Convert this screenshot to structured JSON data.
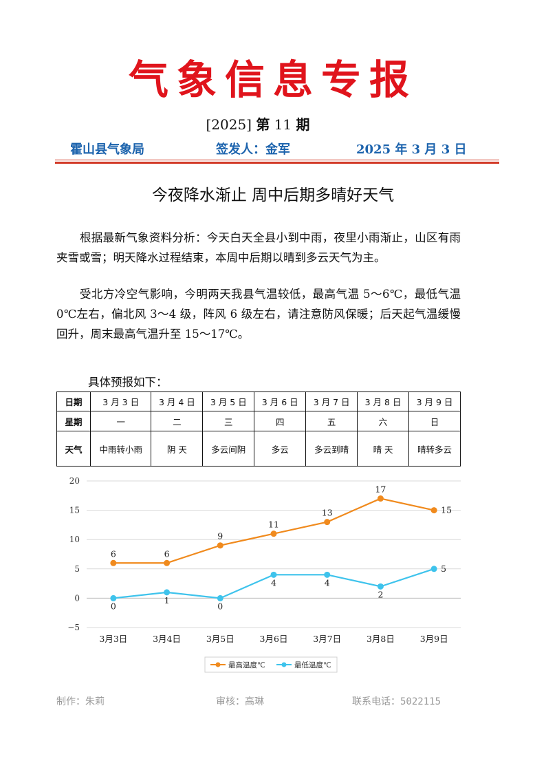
{
  "header": {
    "masthead": "气象信息专报",
    "issue_year": "[2025]",
    "issue_label": "第",
    "issue_number": "11",
    "issue_suffix": "期",
    "bureau": "霍山县气象局",
    "issuer": "签发人：金军",
    "date": "2025 年 3 月 3 日"
  },
  "headline": "今夜降水渐止 周中后期多晴好天气",
  "paragraphs": [
    "根据最新气象资料分析：今天白天全县小到中雨，夜里小雨渐止，山区有雨夹雪或雪；明天降水过程结束，本周中后期以晴到多云天气为主。",
    "受北方冷空气影响，今明两天我县气温较低，最高气温 5～6℃，最低气温 0℃左右，偏北风 3～4 级，阵风 6 级左右，请注意防风保暖；后天起气温缓慢回升，周末最高气温升至 15～17℃。"
  ],
  "forecast": {
    "intro": "具体预报如下：",
    "row_labels": {
      "date": "日期",
      "weekday": "星期",
      "weather": "天气"
    },
    "days": [
      {
        "date": "3 月 3 日",
        "weekday": "一",
        "weather": "中雨转小雨"
      },
      {
        "date": "3 月 4 日",
        "weekday": "二",
        "weather": "阴  天"
      },
      {
        "date": "3 月 5 日",
        "weekday": "三",
        "weather": "多云间阴"
      },
      {
        "date": "3 月 6 日",
        "weekday": "四",
        "weather": "多云"
      },
      {
        "date": "3 月 7 日",
        "weekday": "五",
        "weather": "多云到晴"
      },
      {
        "date": "3 月 8 日",
        "weekday": "六",
        "weather": "晴  天"
      },
      {
        "date": "3 月 9 日",
        "weekday": "日",
        "weather": "晴转多云"
      }
    ]
  },
  "chart_data": {
    "type": "line",
    "categories": [
      "3月3日",
      "3月4日",
      "3月5日",
      "3月6日",
      "3月7日",
      "3月8日",
      "3月9日"
    ],
    "series": [
      {
        "name": "最高温度℃",
        "values": [
          6,
          6,
          9,
          11,
          13,
          17,
          15
        ],
        "color": "#f08a1d"
      },
      {
        "name": "最低温度℃",
        "values": [
          0,
          1,
          0,
          4,
          4,
          2,
          5
        ],
        "color": "#3ec3ec"
      }
    ],
    "ylim": [
      -5,
      20
    ],
    "yticks": [
      -5,
      0,
      5,
      10,
      15,
      20
    ],
    "grid": true,
    "legend": "bottom",
    "title": "",
    "xlabel": "",
    "ylabel": ""
  },
  "footer": {
    "maker": "制作：朱莉",
    "reviewer": "审核：高琳",
    "phone": "联系电话：5022115"
  }
}
